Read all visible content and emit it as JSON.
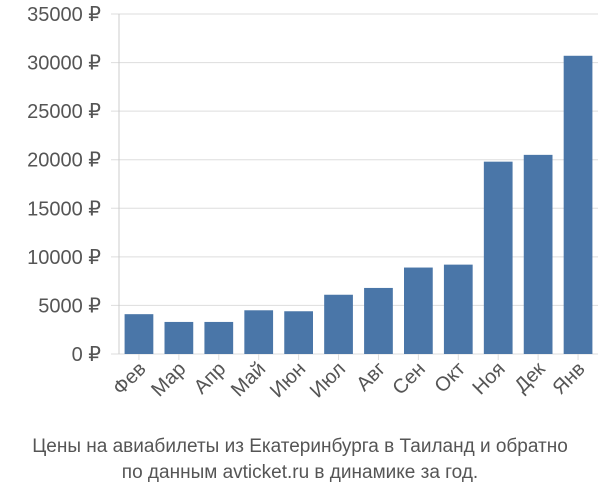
{
  "chart_data": {
    "type": "bar",
    "categories": [
      "Фев",
      "Мар",
      "Апр",
      "Май",
      "Июн",
      "Июл",
      "Авг",
      "Сен",
      "Окт",
      "Ноя",
      "Дек",
      "Янв"
    ],
    "values": [
      4100,
      3300,
      3300,
      4500,
      4400,
      6100,
      6800,
      8900,
      9200,
      19800,
      20500,
      30700
    ],
    "y_ticks": [
      "0 ₽",
      "5000 ₽",
      "10000 ₽",
      "15000 ₽",
      "20000 ₽",
      "25000 ₽",
      "30000 ₽",
      "35000 ₽"
    ],
    "ylim": [
      0,
      35000
    ],
    "grid": true,
    "bar_color": "#4a76a8",
    "grid_color": "#dddddd",
    "title": "",
    "xlabel": "",
    "ylabel": ""
  },
  "caption": {
    "line1": "Цены на авиабилеты из Екатеринбурга в Таиланд и обратно",
    "line2": "по данным avticket.ru в динамике за год."
  }
}
